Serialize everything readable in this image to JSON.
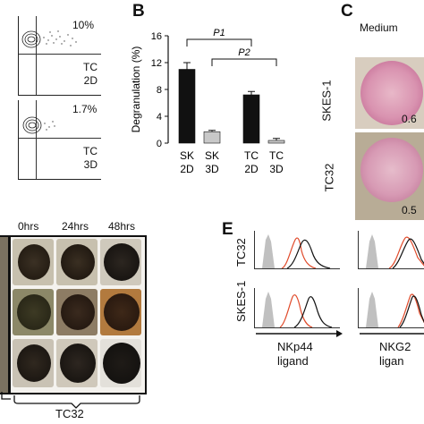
{
  "panel_a": {
    "top": {
      "percent": "10%",
      "label_line1": "TC",
      "label_line2": "2D"
    },
    "bottom": {
      "percent": "1.7%",
      "label_line1": "TC",
      "label_line2": "3D"
    }
  },
  "panel_b": {
    "letter": "B",
    "significance": [
      "P1",
      "P2"
    ],
    "chart_data": {
      "type": "bar",
      "ylabel": "Degranulation (%)",
      "ylim": [
        0,
        16
      ],
      "yticks": [
        "0",
        "4",
        "8",
        "12",
        "16"
      ],
      "categories": [
        {
          "line1": "SK",
          "line2": "2D"
        },
        {
          "line1": "SK",
          "line2": "3D"
        },
        {
          "line1": "TC",
          "line2": "2D"
        },
        {
          "line1": "TC",
          "line2": "3D"
        }
      ],
      "values": [
        11.0,
        1.7,
        7.2,
        0.4
      ],
      "errors": [
        1.0,
        0.2,
        0.5,
        0.3
      ],
      "colors": [
        "#111111",
        "#c8c8c8",
        "#111111",
        "#c8c8c8"
      ]
    }
  },
  "panel_c": {
    "letter": "C",
    "title": "Medium",
    "rows": [
      {
        "label": "SKES-1",
        "value": "0.6"
      },
      {
        "label": "TC32",
        "value": "0.5"
      }
    ]
  },
  "panel_d": {
    "times": [
      "0hrs",
      "24hrs",
      "48hrs"
    ],
    "group_label": "TC32"
  },
  "panel_e": {
    "letter": "E",
    "rows": [
      "TC32",
      "SKES-1"
    ],
    "x_labels": [
      {
        "line1": "NKp44",
        "line2": "ligand"
      },
      {
        "line1": "NKG2",
        "line2": "ligan"
      }
    ]
  }
}
